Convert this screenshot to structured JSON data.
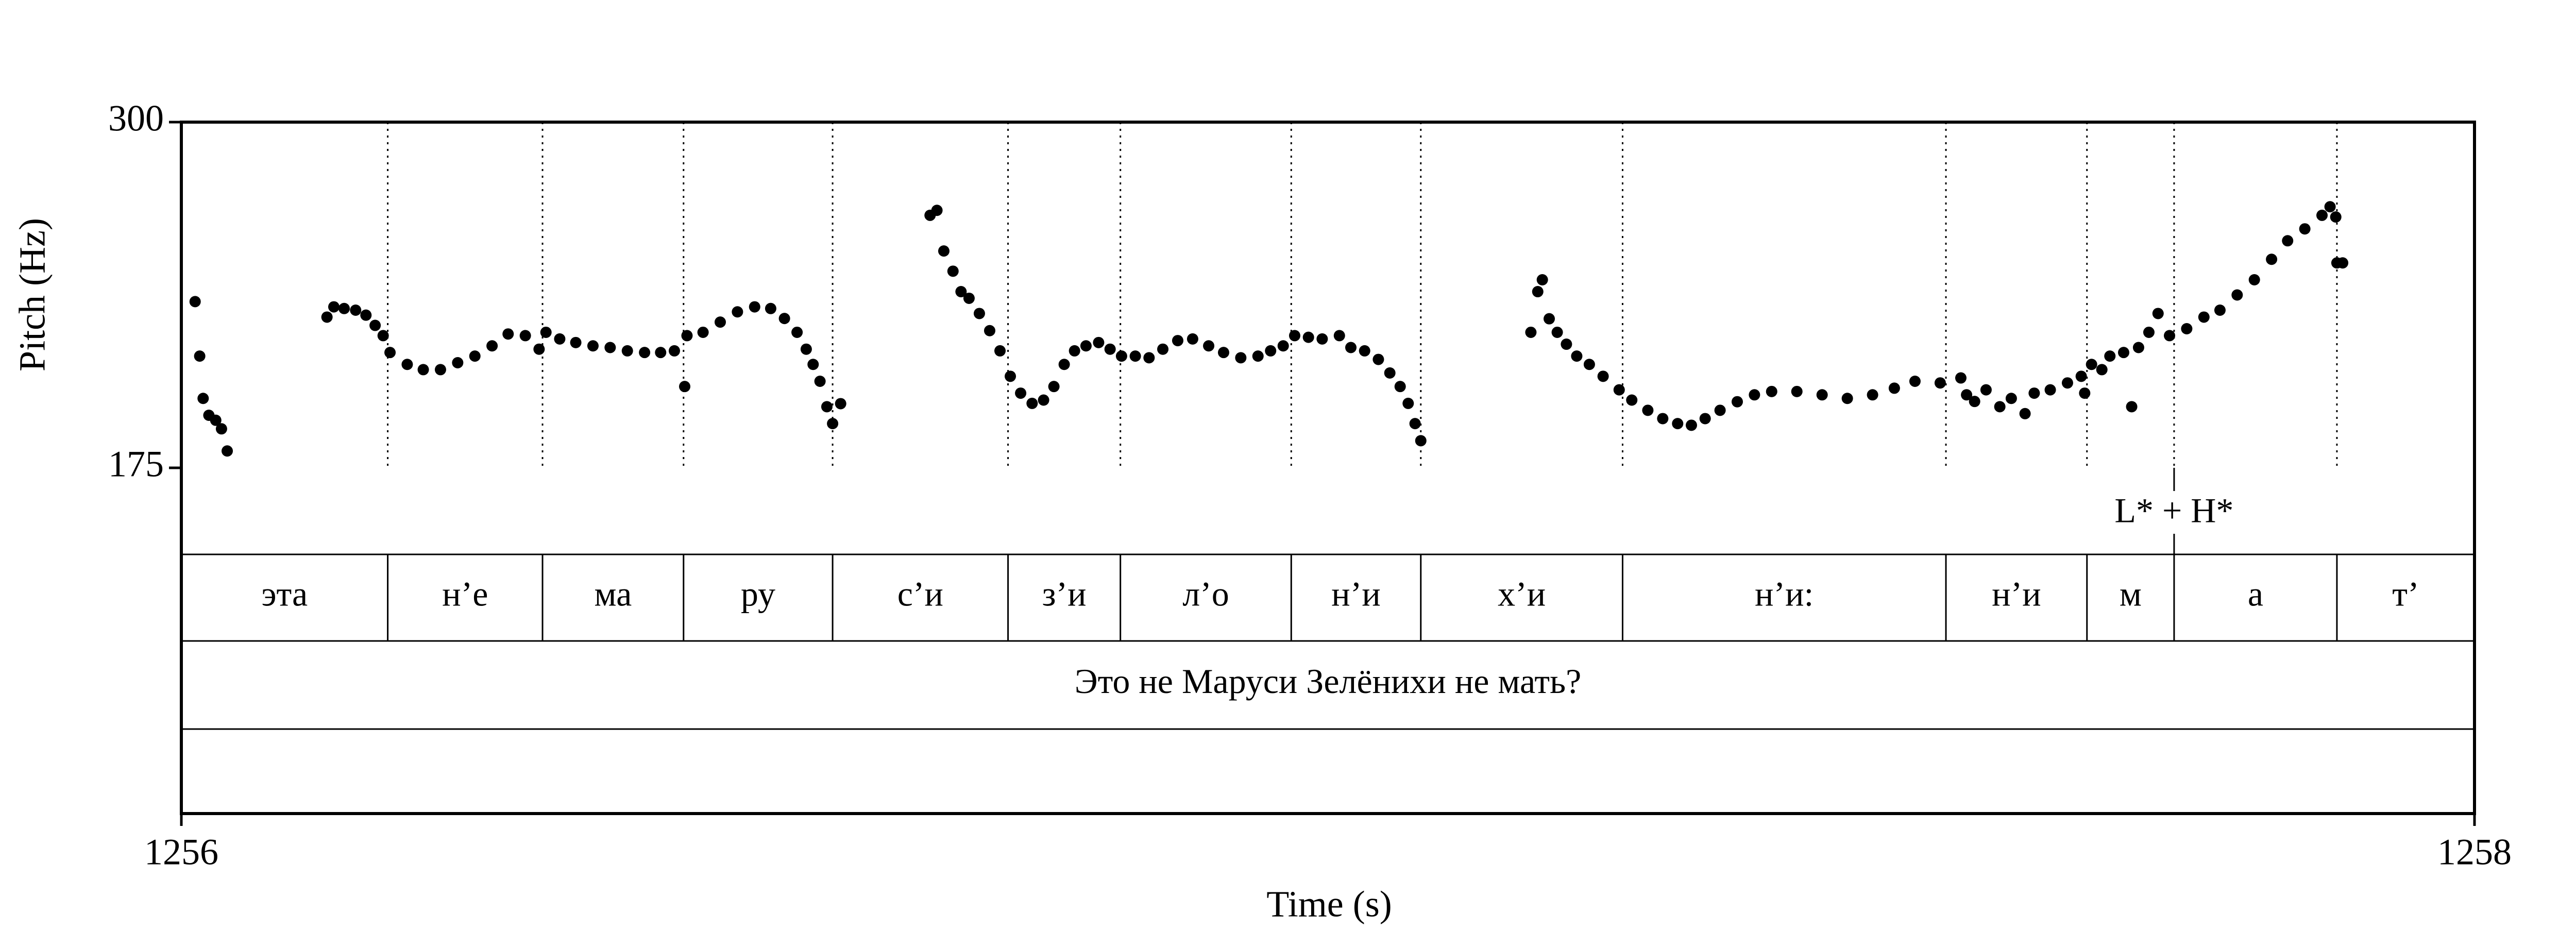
{
  "chart_data": {
    "type": "scatter",
    "xlabel": "Time (s)",
    "ylabel": "Pitch (Hz)",
    "xlim": [
      1256,
      1258
    ],
    "ylim": [
      175,
      300
    ],
    "xticks": [
      1256,
      1258
    ],
    "yticks": [
      175,
      300
    ],
    "color": "#000000",
    "x": [
      1256.012,
      1256.016,
      1256.019,
      1256.024,
      1256.03,
      1256.035,
      1256.04,
      1256.127,
      1256.133,
      1256.142,
      1256.152,
      1256.161,
      1256.169,
      1256.176,
      1256.182,
      1256.197,
      1256.211,
      1256.226,
      1256.241,
      1256.256,
      1256.271,
      1256.285,
      1256.3,
      1256.312,
      1256.318,
      1256.33,
      1256.344,
      1256.359,
      1256.374,
      1256.389,
      1256.404,
      1256.418,
      1256.43,
      1256.439,
      1256.441,
      1256.455,
      1256.47,
      1256.485,
      1256.5,
      1256.514,
      1256.526,
      1256.537,
      1256.545,
      1256.551,
      1256.557,
      1256.563,
      1256.568,
      1256.575,
      1256.653,
      1256.659,
      1256.665,
      1256.673,
      1256.68,
      1256.687,
      1256.696,
      1256.705,
      1256.714,
      1256.723,
      1256.732,
      1256.742,
      1256.752,
      1256.761,
      1256.77,
      1256.779,
      1256.789,
      1256.8,
      1256.81,
      1256.82,
      1256.832,
      1256.844,
      1256.856,
      1256.869,
      1256.882,
      1256.896,
      1256.909,
      1256.924,
      1256.939,
      1256.95,
      1256.961,
      1256.971,
      1256.983,
      1256.995,
      1257.01,
      1257.02,
      1257.032,
      1257.044,
      1257.054,
      1257.063,
      1257.07,
      1257.076,
      1257.081,
      1257.177,
      1257.183,
      1257.187,
      1257.193,
      1257.2,
      1257.208,
      1257.217,
      1257.228,
      1257.24,
      1257.254,
      1257.265,
      1257.279,
      1257.292,
      1257.305,
      1257.317,
      1257.329,
      1257.342,
      1257.357,
      1257.372,
      1257.387,
      1257.409,
      1257.431,
      1257.453,
      1257.475,
      1257.494,
      1257.512,
      1257.534,
      1257.552,
      1257.557,
      1257.564,
      1257.574,
      1257.586,
      1257.596,
      1257.608,
      1257.616,
      1257.63,
      1257.645,
      1257.657,
      1257.66,
      1257.666,
      1257.675,
      1257.682,
      1257.694,
      1257.701,
      1257.707,
      1257.716,
      1257.724,
      1257.734,
      1257.749,
      1257.764,
      1257.778,
      1257.793,
      1257.808,
      1257.823,
      1257.837,
      1257.852,
      1257.867,
      1257.874,
      1257.879,
      1257.88,
      1257.885
    ],
    "values": [
      235.1,
      215.4,
      200.1,
      194.0,
      192.2,
      189.1,
      181.1,
      229.5,
      233.2,
      232.6,
      232.0,
      230.2,
      226.5,
      222.8,
      216.7,
      212.4,
      210.5,
      210.5,
      213.0,
      215.4,
      219.1,
      223.4,
      222.8,
      217.9,
      224.0,
      221.6,
      220.3,
      219.1,
      218.5,
      217.3,
      216.7,
      216.7,
      217.3,
      204.4,
      222.8,
      224.0,
      227.7,
      231.4,
      233.2,
      232.6,
      229.0,
      224.0,
      217.9,
      212.4,
      206.3,
      197.1,
      191.0,
      198.2,
      266.3,
      268.1,
      253.4,
      246.1,
      238.7,
      236.3,
      230.8,
      224.6,
      217.3,
      208.1,
      202.0,
      198.3,
      199.5,
      204.4,
      212.4,
      217.3,
      219.1,
      220.3,
      217.9,
      215.4,
      215.4,
      214.8,
      217.9,
      221.0,
      221.6,
      219.1,
      216.7,
      214.8,
      215.4,
      217.3,
      219.1,
      222.8,
      222.2,
      221.6,
      222.8,
      218.5,
      217.3,
      214.2,
      209.3,
      204.4,
      198.3,
      191.0,
      184.8,
      224.0,
      238.7,
      243.0,
      228.9,
      224.0,
      219.7,
      215.4,
      212.4,
      208.1,
      203.2,
      199.5,
      195.8,
      192.8,
      191.0,
      190.4,
      192.8,
      195.8,
      198.9,
      201.4,
      202.6,
      202.6,
      201.4,
      200.1,
      201.4,
      203.8,
      206.3,
      205.7,
      207.5,
      201.4,
      199.0,
      203.2,
      197.1,
      200.1,
      194.6,
      202.0,
      203.2,
      205.7,
      208.1,
      202.0,
      212.4,
      210.5,
      215.4,
      216.7,
      197.1,
      218.5,
      224.0,
      230.8,
      222.8,
      225.3,
      229.5,
      232.0,
      237.5,
      243.0,
      250.4,
      257.1,
      261.4,
      266.3,
      269.4,
      265.7,
      249.1,
      249.1
    ],
    "tone_tier": {
      "points": [
        1257.738
      ],
      "labels": [
        "L* + H*"
      ]
    },
    "syllable_tier": {
      "boundaries": [
        1256.18,
        1256.315,
        1256.438,
        1256.568,
        1256.721,
        1256.819,
        1256.968,
        1257.081,
        1257.257,
        1257.539,
        1257.662,
        1257.738,
        1257.88
      ],
      "labels": [
        "эта",
        "н’е",
        "ма",
        "ру",
        "с’и",
        "з’и",
        "л’о",
        "н’и",
        "х’и",
        "н’и:",
        "н’и",
        "м",
        "а",
        "т’"
      ]
    },
    "sentence_tier": {
      "labels": [
        "Это не Маруси Зелёнихи не мать?"
      ]
    }
  }
}
